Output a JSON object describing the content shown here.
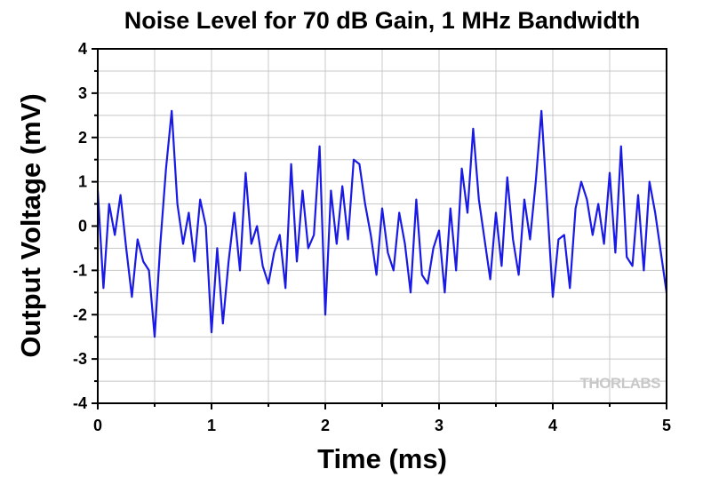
{
  "chart_data": {
    "type": "line",
    "title": "Noise Level for 70 dB Gain, 1 MHz Bandwidth",
    "xlabel": "Time (ms)",
    "ylabel": "Output Voltage (mV)",
    "xlim": [
      0,
      5
    ],
    "ylim": [
      -4,
      4
    ],
    "x_ticks": [
      "0",
      "1",
      "2",
      "3",
      "4",
      "5"
    ],
    "y_ticks": [
      "-4",
      "-3",
      "-2",
      "-1",
      "0",
      "1",
      "2",
      "3",
      "4"
    ],
    "grid": true,
    "line_color": "#1a1ae6",
    "watermark": "THORLABS",
    "series": [
      {
        "x": [
          0.0,
          0.05,
          0.1,
          0.15,
          0.2,
          0.25,
          0.3,
          0.35,
          0.4,
          0.45,
          0.5,
          0.55,
          0.6,
          0.65,
          0.7,
          0.75,
          0.8,
          0.85,
          0.9,
          0.95,
          1.0,
          1.05,
          1.1,
          1.15,
          1.2,
          1.25,
          1.3,
          1.35,
          1.4,
          1.45,
          1.5,
          1.55,
          1.6,
          1.65,
          1.7,
          1.75,
          1.8,
          1.85,
          1.9,
          1.95,
          2.0,
          2.05,
          2.1,
          2.15,
          2.2,
          2.25,
          2.3,
          2.35,
          2.4,
          2.45,
          2.5,
          2.55,
          2.6,
          2.65,
          2.7,
          2.75,
          2.8,
          2.85,
          2.9,
          2.95,
          3.0,
          3.05,
          3.1,
          3.15,
          3.2,
          3.25,
          3.3,
          3.35,
          3.4,
          3.45,
          3.5,
          3.55,
          3.6,
          3.65,
          3.7,
          3.75,
          3.8,
          3.85,
          3.9,
          3.95,
          4.0,
          4.05,
          4.1,
          4.15,
          4.2,
          4.25,
          4.3,
          4.35,
          4.4,
          4.45,
          4.5,
          4.55,
          4.6,
          4.65,
          4.7,
          4.75,
          4.8,
          4.85,
          4.9,
          4.95,
          5.0
        ],
        "y": [
          0.8,
          -1.4,
          0.5,
          -0.2,
          0.7,
          -0.5,
          -1.6,
          -0.3,
          -0.8,
          -1.0,
          -2.5,
          -0.4,
          1.3,
          2.6,
          0.5,
          -0.4,
          0.3,
          -0.8,
          0.6,
          0.0,
          -2.4,
          -0.5,
          -2.2,
          -0.8,
          0.3,
          -1.0,
          1.2,
          -0.4,
          0.0,
          -0.9,
          -1.3,
          -0.6,
          -0.2,
          -1.4,
          1.4,
          -0.8,
          0.8,
          -0.5,
          -0.2,
          1.8,
          -2.0,
          0.8,
          -0.4,
          0.9,
          -0.3,
          1.5,
          1.4,
          0.5,
          -0.2,
          -1.1,
          0.4,
          -0.6,
          -1.0,
          0.3,
          -0.4,
          -1.5,
          0.6,
          -1.1,
          -1.3,
          -0.5,
          -0.1,
          -1.5,
          0.4,
          -1.0,
          1.3,
          0.3,
          2.2,
          0.6,
          -0.3,
          -1.2,
          0.3,
          -0.9,
          1.1,
          -0.3,
          -1.1,
          0.6,
          -0.3,
          1.0,
          2.6,
          0.5,
          -1.6,
          -0.3,
          -0.2,
          -1.4,
          0.4,
          1.0,
          0.6,
          -0.2,
          0.5,
          -0.4,
          1.2,
          -0.6,
          1.8,
          -0.7,
          -0.9,
          0.7,
          -1.0,
          1.0,
          0.3,
          -0.6,
          -1.5
        ]
      }
    ]
  }
}
